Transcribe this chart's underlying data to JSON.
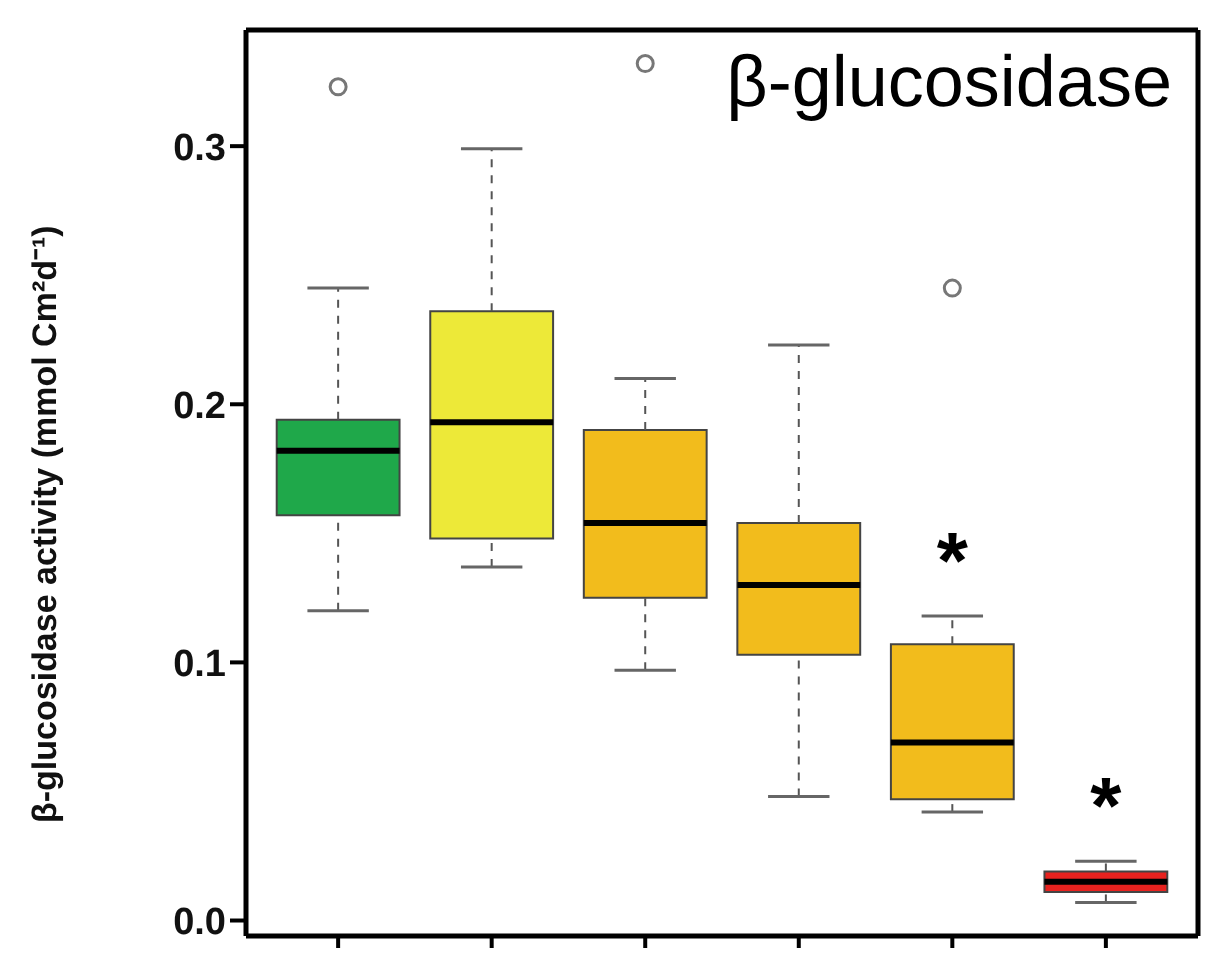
{
  "chart_data": {
    "type": "box",
    "title": "β-glucosidase",
    "ylabel": "β-glucosidase activity (mmol Cm²d⁻¹)",
    "categories": [
      null,
      null,
      null,
      null,
      null,
      null
    ],
    "colors": [
      "#1fa84a",
      "#ede938",
      "#f2bc1c",
      "#f2bc1c",
      "#f2bc1c",
      "#e8221f"
    ],
    "boxes": [
      {
        "low": 0.12,
        "q1": 0.157,
        "median": 0.182,
        "q3": 0.194,
        "high": 0.245,
        "outliers": [
          0.323
        ]
      },
      {
        "low": 0.137,
        "q1": 0.148,
        "median": 0.193,
        "q3": 0.236,
        "high": 0.299
      },
      {
        "low": 0.097,
        "q1": 0.125,
        "median": 0.154,
        "q3": 0.19,
        "high": 0.21,
        "outliers": [
          0.332
        ]
      },
      {
        "low": 0.048,
        "q1": 0.103,
        "median": 0.13,
        "q3": 0.154,
        "high": 0.223
      },
      {
        "low": 0.042,
        "q1": 0.047,
        "median": 0.069,
        "q3": 0.107,
        "high": 0.118,
        "outliers": [
          0.245
        ]
      },
      {
        "low": 0.007,
        "q1": 0.011,
        "median": 0.015,
        "q3": 0.019,
        "high": 0.023
      }
    ],
    "ylim": [
      -0.006,
      0.345
    ],
    "yticks": [
      {
        "value": 0,
        "label": "0.0"
      },
      0.1,
      0.2,
      0.3
    ],
    "tick_labels": "y",
    "annotations": [
      "*",
      "*"
    ]
  }
}
